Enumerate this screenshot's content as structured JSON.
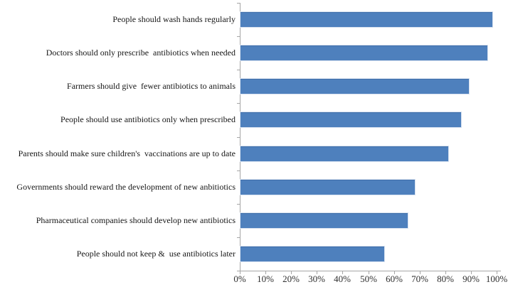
{
  "chart_data": {
    "type": "bar",
    "orientation": "horizontal",
    "title": "",
    "xlabel": "",
    "ylabel": "",
    "categories": [
      "People should wash hands regularly",
      "Doctors should only prescribe  antibiotics when needed",
      "Farmers should give  fewer antibiotics to animals",
      "People should use antibiotics only when prescribed",
      "Parents should make sure children's  vaccinations are up to date",
      "Governments should reward the development of new anbitiotics",
      "Pharmaceutical companies should develop new antibiotics",
      "People should not keep &  use antibiotics later"
    ],
    "values": [
      98,
      96,
      89,
      86,
      81,
      68,
      65,
      56
    ],
    "value_unit": "%",
    "xlim": [
      0,
      100
    ],
    "x_tick_step": 10,
    "x_tick_labels": [
      "0%",
      "10%",
      "20%",
      "30%",
      "40%",
      "50%",
      "60%",
      "70%",
      "80%",
      "90%",
      "100%"
    ],
    "grid": false,
    "legend": false,
    "colors": {
      "bar_fill": "#4e80bd",
      "bar_outline": "#d9e3f1",
      "axis": "#a6a6a6",
      "category_text": "#161616",
      "tick_text": "#2f2f2f"
    }
  }
}
